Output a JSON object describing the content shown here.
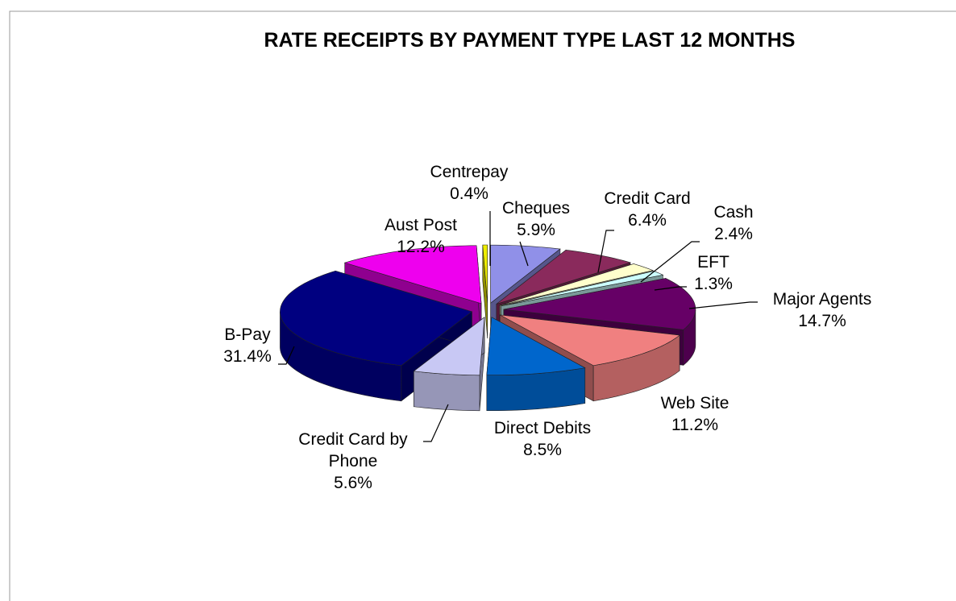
{
  "chart_data": {
    "type": "pie3d",
    "title": "RATE RECEIPTS BY PAYMENT TYPE LAST 12 MONTHS",
    "categories": [
      "Cheques",
      "Credit Card",
      "Cash",
      "EFT",
      "Major Agents",
      "Web Site",
      "Direct Debits",
      "Credit Card by Phone",
      "B-Pay",
      "Aust Post",
      "Centrepay"
    ],
    "values": [
      5.9,
      6.4,
      2.4,
      1.3,
      14.7,
      11.2,
      8.5,
      5.6,
      31.4,
      12.2,
      0.4
    ],
    "value_labels": [
      "5.9%",
      "6.4%",
      "2.4%",
      "1.3%",
      "14.7%",
      "11.2%",
      "8.5%",
      "5.6%",
      "31.4%",
      "12.2%",
      "0.4%"
    ],
    "colors": [
      "#9090e8",
      "#8a2a5c",
      "#ffffcc",
      "#ccffff",
      "#660066",
      "#f08080",
      "#0066cc",
      "#c8c8f4",
      "#000080",
      "#ee00ee",
      "#eeee00"
    ]
  }
}
